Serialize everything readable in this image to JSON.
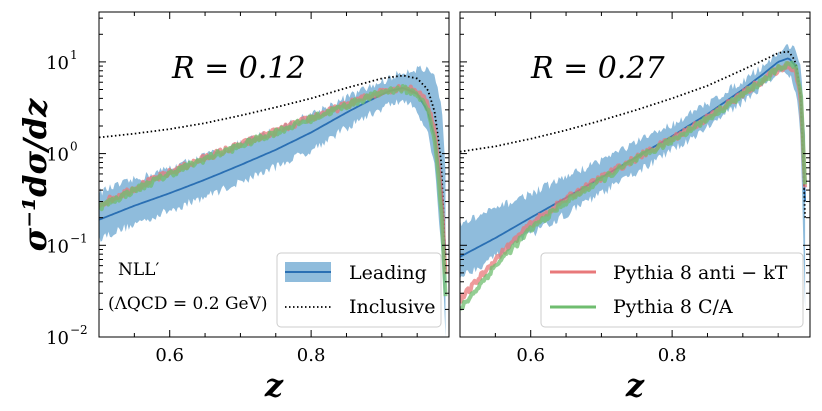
{
  "chart_data": {
    "type": "line",
    "ylabel": "σ⁻¹dσ/dz",
    "xlabel": "z",
    "yscale": "log",
    "ylim": [
      0.01,
      35
    ],
    "xlim": [
      0.5,
      0.995
    ],
    "xticks": [
      0.6,
      0.8
    ],
    "xtick_labels": [
      "0.6",
      "0.8"
    ],
    "yticks": [
      0.01,
      0.1,
      1,
      10
    ],
    "ytick_labels": [
      "10",
      "10",
      "10",
      "10"
    ],
    "ytick_exponents": [
      "−2",
      "−1",
      "0",
      "1"
    ],
    "colors": {
      "leading_line": "#2a6fb3",
      "leading_band": "#8fbcdc",
      "anti_kt": "#e8787a",
      "ca": "#6fbd6f",
      "inclusive": "#000000"
    },
    "panels": [
      {
        "label": "R = 0.12",
        "series": [
          {
            "name": "Leading",
            "style": "solid",
            "x": [
              0.5,
              0.55,
              0.6,
              0.65,
              0.7,
              0.75,
              0.8,
              0.85,
              0.88,
              0.91,
              0.93,
              0.95,
              0.965,
              0.975,
              0.985,
              0.99
            ],
            "values": [
              0.19,
              0.27,
              0.37,
              0.52,
              0.75,
              1.1,
              1.7,
              2.8,
              3.7,
              4.8,
              5.2,
              4.5,
              2.9,
              1.5,
              0.4,
              0.08
            ]
          },
          {
            "name": "Leading band lower",
            "style": "band",
            "x": [
              0.5,
              0.55,
              0.6,
              0.65,
              0.7,
              0.75,
              0.8,
              0.85,
              0.88,
              0.91,
              0.93,
              0.95,
              0.965,
              0.975,
              0.985,
              0.99
            ],
            "values": [
              0.12,
              0.17,
              0.24,
              0.34,
              0.49,
              0.72,
              1.1,
              1.9,
              2.6,
              3.4,
              3.8,
              3.0,
              1.7,
              0.7,
              0.08,
              0.01
            ]
          },
          {
            "name": "Leading band upper",
            "style": "band",
            "x": [
              0.5,
              0.55,
              0.6,
              0.65,
              0.7,
              0.75,
              0.8,
              0.85,
              0.88,
              0.91,
              0.93,
              0.95,
              0.965,
              0.975,
              0.985,
              0.99
            ],
            "values": [
              0.38,
              0.52,
              0.7,
              0.95,
              1.3,
              1.85,
              2.7,
              4.1,
              5.2,
              6.6,
              7.8,
              8.5,
              8.0,
              6.5,
              3.0,
              0.6
            ]
          },
          {
            "name": "Inclusive",
            "style": "dotted",
            "x": [
              0.5,
              0.55,
              0.6,
              0.65,
              0.7,
              0.75,
              0.8,
              0.85,
              0.9,
              0.93,
              0.95,
              0.965,
              0.975,
              0.985,
              0.99
            ],
            "values": [
              1.5,
              1.65,
              1.85,
              2.15,
              2.6,
              3.2,
              4.0,
              5.2,
              6.6,
              7.1,
              6.6,
              5.0,
              2.8,
              0.7,
              0.05
            ]
          },
          {
            "name": "Pythia 8 anti − kT",
            "style": "noisy",
            "x": [
              0.5,
              0.55,
              0.6,
              0.65,
              0.7,
              0.75,
              0.8,
              0.85,
              0.88,
              0.91,
              0.93,
              0.95,
              0.965,
              0.975,
              0.985,
              0.99
            ],
            "values": [
              0.28,
              0.42,
              0.62,
              0.9,
              1.25,
              1.75,
              2.45,
              3.4,
              4.2,
              5.0,
              5.3,
              4.8,
              3.5,
              1.8,
              0.3,
              0.05
            ]
          },
          {
            "name": "Pythia 8 C/A",
            "style": "noisy",
            "x": [
              0.5,
              0.55,
              0.6,
              0.65,
              0.7,
              0.75,
              0.8,
              0.85,
              0.88,
              0.91,
              0.93,
              0.95,
              0.965,
              0.975,
              0.985,
              0.99
            ],
            "values": [
              0.26,
              0.4,
              0.6,
              0.88,
              1.22,
              1.72,
              2.4,
              3.35,
              4.1,
              4.9,
              5.1,
              4.5,
              3.0,
              1.4,
              0.2,
              0.03
            ]
          }
        ]
      },
      {
        "label": "R = 0.27",
        "series": [
          {
            "name": "Leading",
            "style": "solid",
            "x": [
              0.5,
              0.55,
              0.6,
              0.65,
              0.7,
              0.75,
              0.8,
              0.85,
              0.9,
              0.93,
              0.95,
              0.965,
              0.975,
              0.982,
              0.988
            ],
            "values": [
              0.075,
              0.12,
              0.2,
              0.33,
              0.55,
              0.92,
              1.55,
              2.7,
              5.0,
              7.5,
              10.0,
              11.0,
              9.0,
              4.0,
              0.3
            ]
          },
          {
            "name": "Leading band lower",
            "style": "band",
            "x": [
              0.5,
              0.55,
              0.6,
              0.65,
              0.7,
              0.75,
              0.8,
              0.85,
              0.9,
              0.93,
              0.95,
              0.965,
              0.975,
              0.982,
              0.988
            ],
            "values": [
              0.045,
              0.075,
              0.13,
              0.22,
              0.37,
              0.63,
              1.08,
              1.95,
              3.7,
              5.7,
              7.5,
              7.5,
              5.0,
              1.5,
              0.02
            ]
          },
          {
            "name": "Leading band upper",
            "style": "band",
            "x": [
              0.5,
              0.55,
              0.6,
              0.65,
              0.7,
              0.75,
              0.8,
              0.85,
              0.9,
              0.93,
              0.95,
              0.965,
              0.975,
              0.982,
              0.988
            ],
            "values": [
              0.17,
              0.25,
              0.37,
              0.56,
              0.86,
              1.33,
              2.1,
              3.5,
              6.3,
              9.3,
              12.5,
              15.0,
              14.0,
              9.0,
              1.5
            ]
          },
          {
            "name": "Inclusive",
            "style": "dotted",
            "x": [
              0.5,
              0.55,
              0.6,
              0.65,
              0.7,
              0.75,
              0.8,
              0.85,
              0.9,
              0.93,
              0.95,
              0.965,
              0.975,
              0.982,
              0.988
            ],
            "values": [
              1.05,
              1.2,
              1.45,
              1.8,
              2.3,
              3.0,
              4.0,
              5.5,
              8.2,
              10.5,
              12.5,
              13.0,
              10.0,
              4.0,
              0.2
            ]
          },
          {
            "name": "Pythia 8 anti − kT",
            "style": "noisy",
            "x": [
              0.5,
              0.55,
              0.6,
              0.65,
              0.7,
              0.75,
              0.8,
              0.85,
              0.9,
              0.93,
              0.95,
              0.965,
              0.975,
              0.982,
              0.988
            ],
            "values": [
              0.025,
              0.07,
              0.17,
              0.32,
              0.55,
              0.9,
              1.45,
              2.45,
              4.5,
              6.5,
              8.3,
              9.3,
              8.0,
              4.0,
              0.4
            ]
          },
          {
            "name": "Pythia 8 C/A",
            "style": "noisy",
            "x": [
              0.5,
              0.55,
              0.6,
              0.65,
              0.7,
              0.75,
              0.8,
              0.85,
              0.9,
              0.93,
              0.95,
              0.965,
              0.975,
              0.982,
              0.988
            ],
            "values": [
              0.02,
              0.06,
              0.15,
              0.3,
              0.52,
              0.87,
              1.4,
              2.4,
              4.4,
              6.4,
              8.4,
              9.7,
              8.6,
              4.5,
              0.5
            ]
          }
        ]
      }
    ],
    "legend_left": {
      "placement": "lower-right",
      "entries": [
        "Leading",
        "Inclusive"
      ],
      "note_line1": "NLL′",
      "note_line2": "(ΛQCD = 0.2 GeV)"
    },
    "legend_right": {
      "placement": "lower-right",
      "entries": [
        "Pythia 8 anti − kT",
        "Pythia 8 C/A"
      ]
    }
  }
}
